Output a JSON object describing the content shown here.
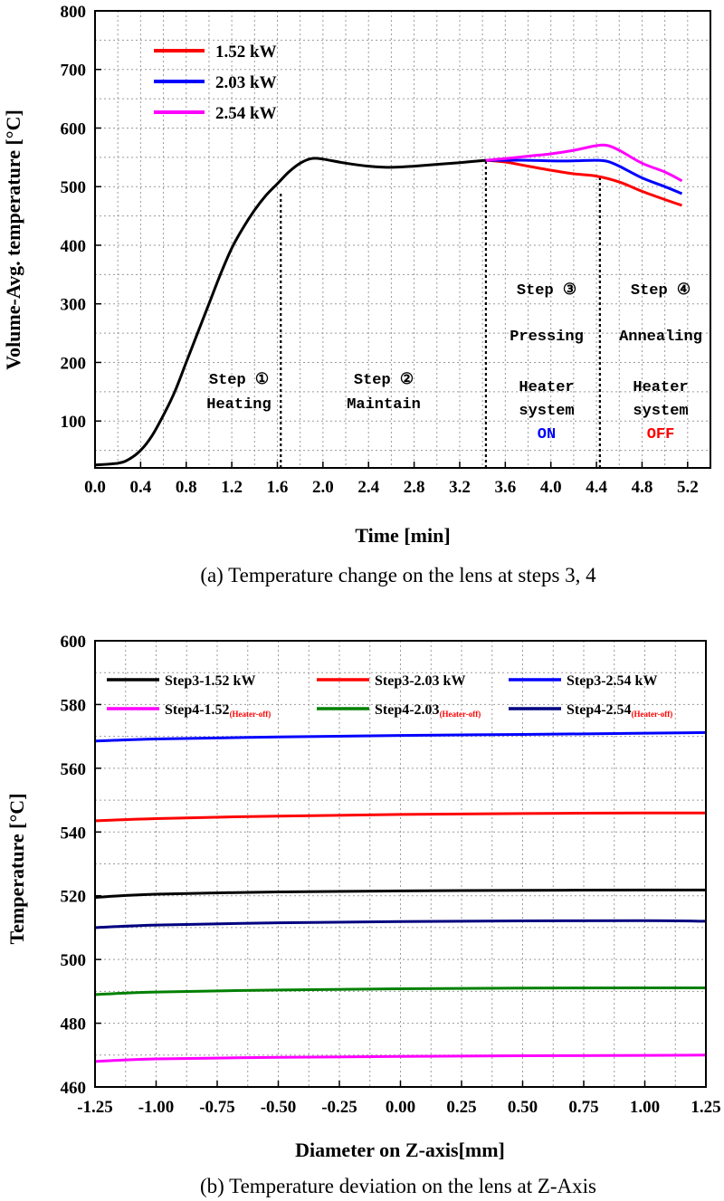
{
  "colors": {
    "black": "#000000",
    "red": "#ff0000",
    "blue": "#0000ff",
    "magenta": "#ff00ff",
    "green": "#008000",
    "navy": "#000080"
  },
  "chart_data": [
    {
      "type": "line",
      "caption": "(a) Temperature change on the lens at steps 3, 4",
      "xlabel": "Time [min]",
      "ylabel": "Volume-Avg. temperature [°C]",
      "xlim": [
        0,
        5.4
      ],
      "ylim": [
        20,
        800
      ],
      "xticks": [
        "0.0",
        "0.4",
        "0.8",
        "1.2",
        "1.6",
        "2.0",
        "2.4",
        "2.8",
        "3.2",
        "3.6",
        "4.0",
        "4.4",
        "4.8",
        "5.2"
      ],
      "yticks": [
        "100",
        "200",
        "300",
        "400",
        "500",
        "600",
        "700",
        "800"
      ],
      "grid": true,
      "legend_position": "top-left",
      "series": [
        {
          "name": "",
          "color": "#000000",
          "x": [
            0,
            0.2,
            0.3,
            0.4,
            0.5,
            0.6,
            0.7,
            0.8,
            0.9,
            1.0,
            1.1,
            1.2,
            1.3,
            1.4,
            1.5,
            1.6,
            1.7,
            1.8,
            1.9,
            2.0,
            2.2,
            2.4,
            2.6,
            2.8,
            3.0,
            3.2,
            3.43
          ],
          "y": [
            25,
            28,
            35,
            50,
            75,
            110,
            150,
            200,
            250,
            300,
            350,
            395,
            430,
            460,
            485,
            505,
            525,
            540,
            548,
            547,
            540,
            535,
            533,
            535,
            538,
            541,
            545
          ]
        },
        {
          "name": "1.52 kW",
          "color": "#ff0000",
          "x": [
            3.43,
            3.6,
            3.8,
            4.0,
            4.2,
            4.4,
            4.6,
            4.8,
            5.0,
            5.15
          ],
          "y": [
            545,
            542,
            535,
            528,
            522,
            518,
            508,
            492,
            478,
            468
          ]
        },
        {
          "name": "2.03 kW",
          "color": "#0000ff",
          "x": [
            3.43,
            3.6,
            3.8,
            4.0,
            4.2,
            4.4,
            4.5,
            4.6,
            4.8,
            5.0,
            5.15
          ],
          "y": [
            545,
            545,
            545,
            544,
            544,
            545,
            543,
            535,
            515,
            500,
            488
          ]
        },
        {
          "name": "2.54 kW",
          "color": "#ff00ff",
          "x": [
            3.43,
            3.6,
            3.8,
            4.0,
            4.2,
            4.4,
            4.5,
            4.6,
            4.8,
            5.0,
            5.15
          ],
          "y": [
            545,
            548,
            552,
            556,
            562,
            570,
            570,
            562,
            540,
            525,
            510
          ]
        }
      ],
      "vlines": [
        1.63,
        3.43,
        4.43
      ],
      "annotations": {
        "step1": {
          "step": "Step ①",
          "label": "Heating"
        },
        "step2": {
          "step": "Step ②",
          "label": "Maintain"
        },
        "step3": {
          "step": "Step ③",
          "label": "Pressing",
          "heater": "Heater",
          "system": "system",
          "state": "ON"
        },
        "step4": {
          "step": "Step ④",
          "label": "Annealing",
          "heater": "Heater",
          "system": "system",
          "state": "OFF"
        }
      }
    },
    {
      "type": "line",
      "caption": "(b) Temperature deviation on the lens at Z-Axis",
      "xlabel": "Diameter on Z-axis[mm]",
      "ylabel": "Temperature [°C]",
      "xlim": [
        -1.25,
        1.25
      ],
      "ylim": [
        460,
        600
      ],
      "xticks": [
        "-1.25",
        "-1.00",
        "-0.75",
        "-0.50",
        "-0.25",
        "0.00",
        "0.25",
        "0.50",
        "0.75",
        "1.00",
        "1.25"
      ],
      "yticks": [
        "460",
        "480",
        "500",
        "520",
        "540",
        "560",
        "580",
        "600"
      ],
      "grid": true,
      "legend_position": "top",
      "series": [
        {
          "name": "Step3-1.52 kW",
          "suffix": "",
          "color": "#000000",
          "x": [
            -1.25,
            -1.0,
            -0.5,
            0,
            0.5,
            1.0,
            1.25
          ],
          "y": [
            519.5,
            520.5,
            521.2,
            521.5,
            521.7,
            521.8,
            521.8
          ]
        },
        {
          "name": "Step3-2.03 kW",
          "suffix": "",
          "color": "#ff0000",
          "x": [
            -1.25,
            -1.0,
            -0.5,
            0,
            0.5,
            1.0,
            1.25
          ],
          "y": [
            543.5,
            544.2,
            545.0,
            545.5,
            545.8,
            546.0,
            546.0
          ]
        },
        {
          "name": "Step3-2.54 kW",
          "suffix": "",
          "color": "#0000ff",
          "x": [
            -1.25,
            -1.0,
            -0.5,
            0,
            0.5,
            1.0,
            1.25
          ],
          "y": [
            568.5,
            569.2,
            569.8,
            570.3,
            570.6,
            571.0,
            571.2
          ]
        },
        {
          "name": "Step4-1.52",
          "suffix": "(Heater-off)",
          "color": "#ff00ff",
          "x": [
            -1.25,
            -1.0,
            -0.5,
            0,
            0.5,
            1.0,
            1.25
          ],
          "y": [
            468.0,
            468.8,
            469.3,
            469.6,
            469.8,
            469.9,
            470.0
          ]
        },
        {
          "name": "Step4-2.03",
          "suffix": "(Heater-off)",
          "color": "#008000",
          "x": [
            -1.25,
            -1.0,
            -0.5,
            0,
            0.5,
            1.0,
            1.25
          ],
          "y": [
            489.0,
            489.8,
            490.4,
            490.8,
            491.0,
            491.1,
            491.1
          ]
        },
        {
          "name": "Step4-2.54",
          "suffix": "(Heater-off)",
          "color": "#000080",
          "x": [
            -1.25,
            -1.0,
            -0.5,
            0,
            0.5,
            1.0,
            1.25
          ],
          "y": [
            510.0,
            510.8,
            511.5,
            511.9,
            512.1,
            512.2,
            512.0
          ]
        }
      ]
    }
  ]
}
